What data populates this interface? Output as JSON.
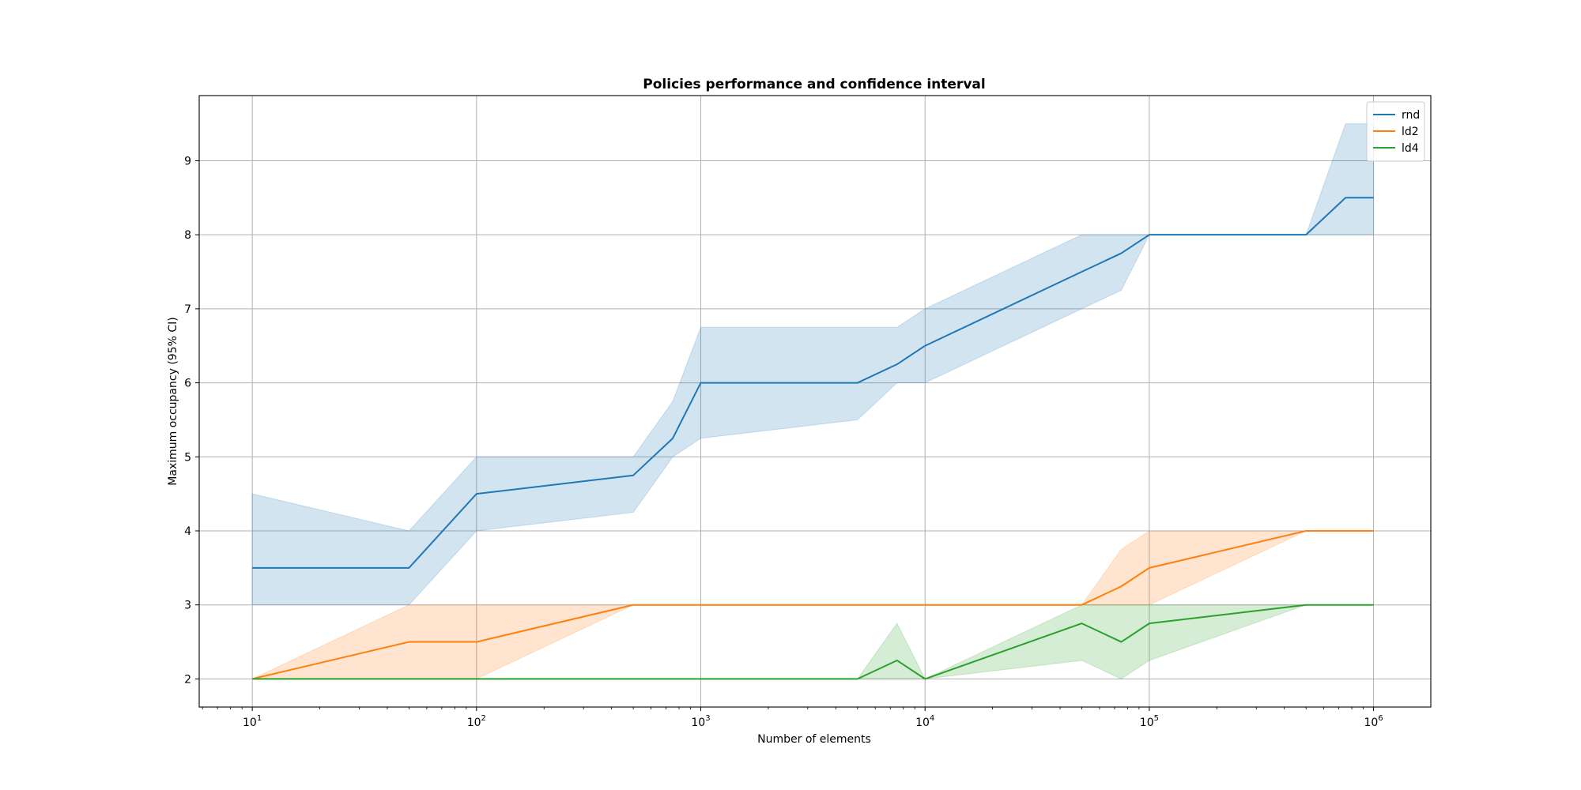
{
  "chart_data": {
    "type": "line",
    "title": "Policies performance and confidence interval",
    "xlabel": "Number of elements",
    "ylabel": "Maximum occupancy (95% CI)",
    "xscale": "log",
    "xlim": [
      5.8,
      1800000
    ],
    "ylim": [
      1.62,
      9.88
    ],
    "grid": true,
    "legend_position": "top-right",
    "x_ticks": [
      {
        "base": "10",
        "exp": "1",
        "value": 10
      },
      {
        "base": "10",
        "exp": "2",
        "value": 100
      },
      {
        "base": "10",
        "exp": "3",
        "value": 1000
      },
      {
        "base": "10",
        "exp": "4",
        "value": 10000
      },
      {
        "base": "10",
        "exp": "5",
        "value": 100000
      },
      {
        "base": "10",
        "exp": "6",
        "value": 1000000
      }
    ],
    "y_ticks": [
      "2",
      "3",
      "4",
      "5",
      "6",
      "7",
      "8",
      "9"
    ],
    "x": [
      10,
      50,
      100,
      500,
      750,
      1000,
      5000,
      7500,
      10000,
      50000,
      75000,
      100000,
      500000,
      750000,
      1000000
    ],
    "series": [
      {
        "name": "rnd",
        "color": "#1f77b4",
        "values": [
          3.5,
          3.5,
          4.5,
          4.75,
          5.25,
          6.0,
          6.0,
          6.25,
          6.5,
          7.5,
          7.75,
          8.0,
          8.0,
          8.5,
          8.5
        ],
        "ci_low": [
          3.0,
          3.0,
          4.0,
          4.25,
          5.0,
          5.25,
          5.5,
          6.0,
          6.0,
          7.0,
          7.25,
          8.0,
          8.0,
          8.0,
          8.0
        ],
        "ci_high": [
          4.5,
          4.0,
          5.0,
          5.0,
          5.75,
          6.75,
          6.75,
          6.75,
          7.0,
          8.0,
          8.0,
          8.0,
          8.0,
          9.5,
          9.5
        ]
      },
      {
        "name": "ld2",
        "color": "#ff7f0e",
        "values": [
          2.0,
          2.5,
          2.5,
          3.0,
          3.0,
          3.0,
          3.0,
          3.0,
          3.0,
          3.0,
          3.25,
          3.5,
          4.0,
          4.0,
          4.0
        ],
        "ci_low": [
          2.0,
          2.0,
          2.0,
          3.0,
          3.0,
          3.0,
          3.0,
          3.0,
          3.0,
          3.0,
          3.0,
          3.0,
          4.0,
          4.0,
          4.0
        ],
        "ci_high": [
          2.0,
          3.0,
          3.0,
          3.0,
          3.0,
          3.0,
          3.0,
          3.0,
          3.0,
          3.0,
          3.75,
          4.0,
          4.0,
          4.0,
          4.0
        ]
      },
      {
        "name": "ld4",
        "color": "#2ca02c",
        "values": [
          2.0,
          2.0,
          2.0,
          2.0,
          2.0,
          2.0,
          2.0,
          2.25,
          2.0,
          2.75,
          2.5,
          2.75,
          3.0,
          3.0,
          3.0
        ],
        "ci_low": [
          2.0,
          2.0,
          2.0,
          2.0,
          2.0,
          2.0,
          2.0,
          2.0,
          2.0,
          2.25,
          2.0,
          2.25,
          3.0,
          3.0,
          3.0
        ],
        "ci_high": [
          2.0,
          2.0,
          2.0,
          2.0,
          2.0,
          2.0,
          2.0,
          2.75,
          2.0,
          3.0,
          3.0,
          3.0,
          3.0,
          3.0,
          3.0
        ]
      }
    ]
  }
}
